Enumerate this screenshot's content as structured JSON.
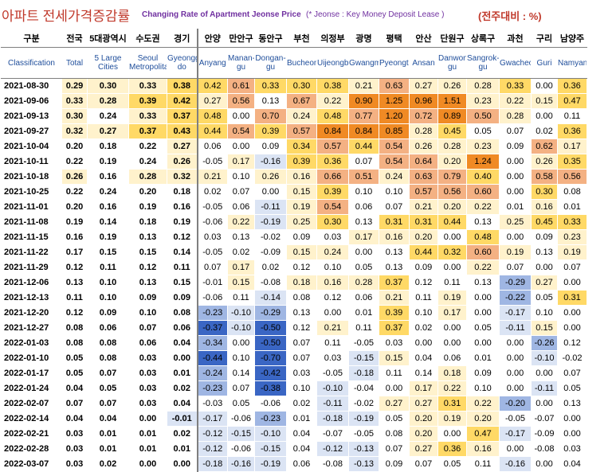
{
  "header": {
    "title_ko": "아파트 전세가격증감률",
    "title_en": "Changing Rate of Apartment Jeonse Price",
    "note": "(* Jeonse : Key Money Deposit Lease )",
    "unit": "(전주대비 : %)"
  },
  "colors": {
    "title_red": "#c0392b",
    "title_purple": "#7030a0",
    "header_blue": "#1f4e9b",
    "pos_light": "#fff2cc",
    "pos_mid": "#ffd966",
    "pos_strong": "#f4b183",
    "pos_max": "#f08a24",
    "neg_light": "#dbe4f4",
    "neg_mid": "#9fb6e3",
    "neg_strong": "#3a66c4"
  },
  "chart_data": {
    "type": "table",
    "row_header_ko": "구분",
    "row_header_en": "Classification",
    "columns": [
      {
        "ko": "전국",
        "en": "Total"
      },
      {
        "ko": "5대광역시",
        "en": "5 Large Cities"
      },
      {
        "ko": "수도권",
        "en": "Seoul Metropolitan"
      },
      {
        "ko": "경기",
        "en": "Gyeonggi-do"
      },
      {
        "ko": "안양",
        "en": "Anyang"
      },
      {
        "ko": "만안구",
        "en": "Manan-gu"
      },
      {
        "ko": "동안구",
        "en": "Dongan-gu"
      },
      {
        "ko": "부천",
        "en": "Bucheon"
      },
      {
        "ko": "의정부",
        "en": "Uijeongbu"
      },
      {
        "ko": "광명",
        "en": "Gwangmyeong"
      },
      {
        "ko": "평택",
        "en": "Pyeongtaek"
      },
      {
        "ko": "안산",
        "en": "Ansan"
      },
      {
        "ko": "단원구",
        "en": "Danwon-gu"
      },
      {
        "ko": "상록구",
        "en": "Sangrok-gu"
      },
      {
        "ko": "과천",
        "en": "Gwacheon"
      },
      {
        "ko": "구리",
        "en": "Guri"
      },
      {
        "ko": "남양주",
        "en": "Namyangju"
      }
    ],
    "rows": [
      {
        "date": "2021-08-30",
        "values": [
          "0.29",
          "0.30",
          "0.33",
          "0.38",
          "0.42",
          "0.61",
          "0.33",
          "0.30",
          "0.38",
          "0.21",
          "0.63",
          "0.27",
          "0.26",
          "0.28",
          "0.33",
          "0.00",
          "0.36"
        ]
      },
      {
        "date": "2021-09-06",
        "values": [
          "0.33",
          "0.28",
          "0.39",
          "0.42",
          "0.27",
          "0.56",
          "0.13",
          "0.67",
          "0.22",
          "0.90",
          "1.25",
          "0.96",
          "1.51",
          "0.23",
          "0.22",
          "0.15",
          "0.47"
        ]
      },
      {
        "date": "2021-09-13",
        "values": [
          "0.30",
          "0.24",
          "0.33",
          "0.37",
          "0.48",
          "0.00",
          "0.70",
          "0.24",
          "0.48",
          "0.77",
          "1.20",
          "0.72",
          "0.89",
          "0.50",
          "0.28",
          "0.00",
          "0.11"
        ]
      },
      {
        "date": "2021-09-27",
        "values": [
          "0.32",
          "0.27",
          "0.37",
          "0.43",
          "0.44",
          "0.54",
          "0.39",
          "0.57",
          "0.84",
          "0.84",
          "0.85",
          "0.28",
          "0.45",
          "0.05",
          "0.07",
          "0.02",
          "0.36"
        ]
      },
      {
        "date": "2021-10-04",
        "values": [
          "0.20",
          "0.18",
          "0.22",
          "0.27",
          "0.06",
          "0.00",
          "0.09",
          "0.34",
          "0.57",
          "0.44",
          "0.54",
          "0.26",
          "0.28",
          "0.23",
          "0.09",
          "0.62",
          "0.17"
        ]
      },
      {
        "date": "2021-10-11",
        "values": [
          "0.22",
          "0.19",
          "0.24",
          "0.26",
          "-0.05",
          "0.17",
          "-0.16",
          "0.39",
          "0.36",
          "0.07",
          "0.54",
          "0.64",
          "0.20",
          "1.24",
          "0.00",
          "0.26",
          "0.35"
        ]
      },
      {
        "date": "2021-10-18",
        "values": [
          "0.26",
          "0.16",
          "0.28",
          "0.32",
          "0.21",
          "0.10",
          "0.26",
          "0.16",
          "0.66",
          "0.51",
          "0.24",
          "0.63",
          "0.79",
          "0.40",
          "0.00",
          "0.58",
          "0.56"
        ]
      },
      {
        "date": "2021-10-25",
        "values": [
          "0.22",
          "0.24",
          "0.20",
          "0.18",
          "0.02",
          "0.07",
          "0.00",
          "0.15",
          "0.39",
          "0.10",
          "0.10",
          "0.57",
          "0.56",
          "0.60",
          "0.00",
          "0.30",
          "0.08"
        ]
      },
      {
        "date": "2021-11-01",
        "values": [
          "0.20",
          "0.16",
          "0.19",
          "0.16",
          "-0.05",
          "0.06",
          "-0.11",
          "0.19",
          "0.54",
          "0.06",
          "0.07",
          "0.21",
          "0.20",
          "0.22",
          "0.01",
          "0.16",
          "0.01"
        ]
      },
      {
        "date": "2021-11-08",
        "values": [
          "0.19",
          "0.14",
          "0.18",
          "0.19",
          "-0.06",
          "0.22",
          "-0.19",
          "0.25",
          "0.30",
          "0.13",
          "0.31",
          "0.31",
          "0.44",
          "0.13",
          "0.25",
          "0.45",
          "0.33"
        ]
      },
      {
        "date": "2021-11-15",
        "values": [
          "0.16",
          "0.19",
          "0.13",
          "0.12",
          "0.03",
          "0.13",
          "-0.02",
          "0.09",
          "0.03",
          "0.17",
          "0.16",
          "0.20",
          "0.00",
          "0.48",
          "0.00",
          "0.09",
          "0.23"
        ]
      },
      {
        "date": "2021-11-22",
        "values": [
          "0.17",
          "0.15",
          "0.15",
          "0.14",
          "-0.05",
          "0.02",
          "-0.09",
          "0.15",
          "0.24",
          "0.00",
          "0.13",
          "0.44",
          "0.32",
          "0.60",
          "0.19",
          "0.13",
          "0.19"
        ]
      },
      {
        "date": "2021-11-29",
        "values": [
          "0.12",
          "0.11",
          "0.12",
          "0.11",
          "0.07",
          "0.17",
          "0.02",
          "0.12",
          "0.10",
          "0.05",
          "0.13",
          "0.09",
          "0.00",
          "0.22",
          "0.07",
          "0.00",
          "0.07"
        ]
      },
      {
        "date": "2021-12-06",
        "values": [
          "0.13",
          "0.10",
          "0.13",
          "0.15",
          "-0.01",
          "0.15",
          "-0.08",
          "0.18",
          "0.16",
          "0.28",
          "0.37",
          "0.12",
          "0.11",
          "0.13",
          "-0.29",
          "0.27",
          "0.00"
        ]
      },
      {
        "date": "2021-12-13",
        "values": [
          "0.11",
          "0.10",
          "0.09",
          "0.09",
          "-0.06",
          "0.11",
          "-0.14",
          "0.08",
          "0.12",
          "0.06",
          "0.21",
          "0.11",
          "0.19",
          "0.00",
          "-0.22",
          "0.05",
          "0.31"
        ]
      },
      {
        "date": "2021-12-20",
        "values": [
          "0.12",
          "0.09",
          "0.10",
          "0.08",
          "-0.23",
          "-0.10",
          "-0.29",
          "0.13",
          "0.00",
          "0.01",
          "0.39",
          "0.10",
          "0.17",
          "0.00",
          "-0.17",
          "0.10",
          "0.00"
        ]
      },
      {
        "date": "2021-12-27",
        "values": [
          "0.08",
          "0.06",
          "0.07",
          "0.06",
          "-0.37",
          "-0.10",
          "-0.50",
          "0.12",
          "0.21",
          "0.11",
          "0.37",
          "0.02",
          "0.00",
          "0.05",
          "-0.11",
          "0.15",
          "0.00"
        ]
      },
      {
        "date": "2022-01-03",
        "values": [
          "0.08",
          "0.08",
          "0.06",
          "0.04",
          "-0.34",
          "0.00",
          "-0.50",
          "0.07",
          "0.11",
          "-0.05",
          "0.03",
          "0.00",
          "0.00",
          "0.00",
          "0.00",
          "-0.26",
          "0.12"
        ]
      },
      {
        "date": "2022-01-10",
        "values": [
          "0.05",
          "0.08",
          "0.03",
          "0.00",
          "-0.44",
          "0.10",
          "-0.70",
          "0.07",
          "0.03",
          "-0.15",
          "0.15",
          "0.04",
          "0.06",
          "0.01",
          "0.00",
          "-0.10",
          "-0.02"
        ]
      },
      {
        "date": "2022-01-17",
        "values": [
          "0.05",
          "0.07",
          "0.03",
          "0.01",
          "-0.24",
          "0.14",
          "-0.42",
          "0.03",
          "-0.05",
          "-0.18",
          "0.11",
          "0.14",
          "0.18",
          "0.09",
          "0.00",
          "0.00",
          "0.07"
        ]
      },
      {
        "date": "2022-01-24",
        "values": [
          "0.04",
          "0.05",
          "0.03",
          "0.02",
          "-0.23",
          "0.07",
          "-0.38",
          "0.10",
          "-0.10",
          "-0.04",
          "0.00",
          "0.17",
          "0.22",
          "0.10",
          "0.00",
          "-0.11",
          "0.05"
        ]
      },
      {
        "date": "2022-02-07",
        "values": [
          "0.07",
          "0.07",
          "0.03",
          "0.04",
          "-0.03",
          "0.05",
          "-0.06",
          "0.02",
          "-0.11",
          "-0.02",
          "0.27",
          "0.27",
          "0.31",
          "0.22",
          "-0.20",
          "0.00",
          "0.13"
        ]
      },
      {
        "date": "2022-02-14",
        "values": [
          "0.04",
          "0.04",
          "0.00",
          "-0.01",
          "-0.17",
          "-0.06",
          "-0.23",
          "0.01",
          "-0.18",
          "-0.19",
          "0.05",
          "0.20",
          "0.19",
          "0.20",
          "-0.05",
          "-0.07",
          "0.00"
        ]
      },
      {
        "date": "2022-02-21",
        "values": [
          "0.03",
          "0.01",
          "0.01",
          "0.02",
          "-0.12",
          "-0.15",
          "-0.10",
          "0.04",
          "-0.07",
          "-0.05",
          "0.08",
          "0.20",
          "0.00",
          "0.47",
          "-0.17",
          "-0.09",
          "0.00"
        ]
      },
      {
        "date": "2022-02-28",
        "values": [
          "0.03",
          "0.01",
          "0.01",
          "0.01",
          "-0.12",
          "-0.06",
          "-0.15",
          "0.04",
          "-0.12",
          "-0.13",
          "0.07",
          "0.27",
          "0.36",
          "0.16",
          "0.00",
          "-0.08",
          "0.03"
        ]
      },
      {
        "date": "2022-03-07",
        "values": [
          "0.03",
          "0.02",
          "0.00",
          "0.00",
          "-0.18",
          "-0.16",
          "-0.19",
          "0.06",
          "-0.08",
          "-0.13",
          "0.09",
          "0.07",
          "0.05",
          "0.11",
          "-0.16",
          "0.00",
          "0.04"
        ]
      }
    ]
  }
}
